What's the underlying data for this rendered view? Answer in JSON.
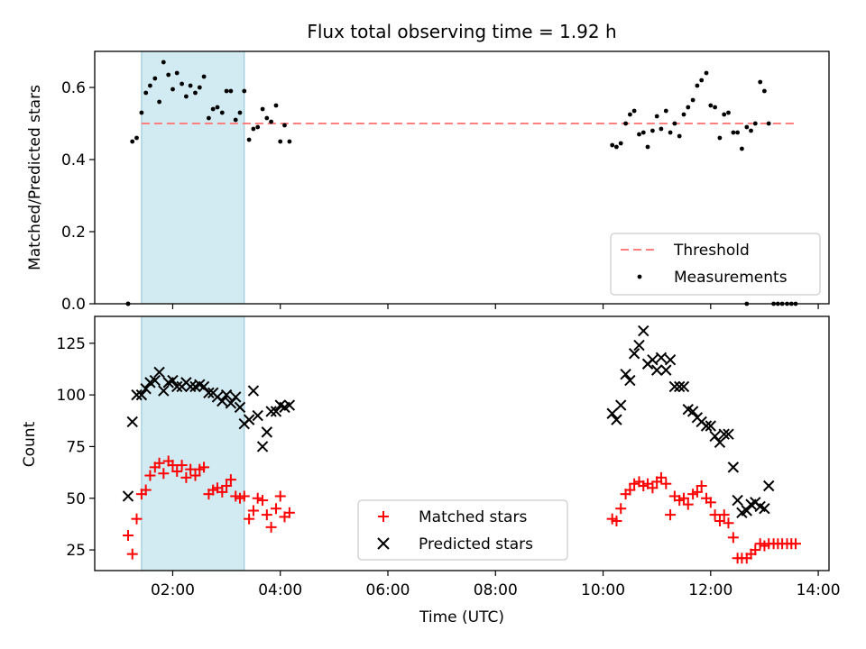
{
  "title": "Flux total observing time = 1.92 h",
  "colors": {
    "threshold": "#ff7f7f",
    "measurements": "#000000",
    "matched": "#ff0000",
    "predicted": "#000000",
    "shade": "#add8e6"
  },
  "chart_data": [
    {
      "type": "scatter",
      "panel": "top",
      "ylabel": "Matched/Predicted stars",
      "xlim": [
        0.55,
        14.2
      ],
      "ylim": [
        0,
        0.7
      ],
      "yticks": [
        0.0,
        0.2,
        0.4,
        0.6
      ],
      "ytick_labels": [
        "0.0",
        "0.2",
        "0.4",
        "0.6"
      ],
      "xticks": [
        2,
        4,
        6,
        8,
        10,
        12,
        14
      ],
      "grid": false,
      "shaded_span": [
        1.42,
        3.33
      ],
      "legend": {
        "position": "lower right",
        "threshold": "Threshold",
        "measurements": "Measurements"
      },
      "threshold": {
        "x": [
          1.42,
          13.6
        ],
        "y": 0.5
      },
      "measurements": {
        "x": [
          1.17,
          1.25,
          1.33,
          1.42,
          1.5,
          1.58,
          1.67,
          1.75,
          1.83,
          1.92,
          2.0,
          2.08,
          2.17,
          2.25,
          2.33,
          2.42,
          2.5,
          2.58,
          2.67,
          2.75,
          2.83,
          2.92,
          3.0,
          3.08,
          3.17,
          3.25,
          3.33,
          3.42,
          3.5,
          3.58,
          3.67,
          3.75,
          3.83,
          3.92,
          4.0,
          4.08,
          4.17,
          10.17,
          10.25,
          10.33,
          10.42,
          10.5,
          10.58,
          10.67,
          10.75,
          10.83,
          10.92,
          11.0,
          11.08,
          11.17,
          11.25,
          11.33,
          11.42,
          11.5,
          11.58,
          11.67,
          11.75,
          11.83,
          11.92,
          12.0,
          12.08,
          12.17,
          12.25,
          12.33,
          12.42,
          12.5,
          12.58,
          12.67,
          12.75,
          12.83,
          12.92,
          13.0,
          13.08,
          12.67,
          13.17,
          13.25,
          13.33,
          13.42,
          13.5,
          13.58,
          1.17
        ],
        "y": [
          0.0,
          0.45,
          0.46,
          0.53,
          0.585,
          0.605,
          0.625,
          0.56,
          0.67,
          0.635,
          0.595,
          0.64,
          0.61,
          0.575,
          0.605,
          0.585,
          0.6,
          0.63,
          0.515,
          0.54,
          0.545,
          0.53,
          0.59,
          0.59,
          0.51,
          0.53,
          0.59,
          0.455,
          0.485,
          0.49,
          0.54,
          0.515,
          0.505,
          0.55,
          0.45,
          0.495,
          0.45,
          0.44,
          0.435,
          0.445,
          0.5,
          0.525,
          0.535,
          0.47,
          0.475,
          0.435,
          0.48,
          0.52,
          0.485,
          0.535,
          0.475,
          0.5,
          0.465,
          0.525,
          0.545,
          0.565,
          0.605,
          0.62,
          0.64,
          0.55,
          0.545,
          0.46,
          0.525,
          0.53,
          0.475,
          0.475,
          0.43,
          0.49,
          0.48,
          0.5,
          0.615,
          0.59,
          0.5,
          0.0,
          0.0,
          0.0,
          0.0,
          0.0,
          0.0,
          0.0,
          0.0
        ]
      }
    },
    {
      "type": "scatter",
      "panel": "bottom",
      "xlabel": "Time (UTC)",
      "ylabel": "Count",
      "xlim": [
        0.55,
        14.2
      ],
      "ylim": [
        15,
        138
      ],
      "yticks": [
        25,
        50,
        75,
        100,
        125
      ],
      "ytick_labels": [
        "25",
        "50",
        "75",
        "100",
        "125"
      ],
      "xticks": [
        2,
        4,
        6,
        8,
        10,
        12,
        14
      ],
      "xtick_labels": [
        "02:00",
        "04:00",
        "06:00",
        "08:00",
        "10:00",
        "12:00",
        "14:00"
      ],
      "grid": false,
      "shaded_span": [
        1.42,
        3.33
      ],
      "legend": {
        "position": "lower center",
        "matched": "Matched stars",
        "predicted": "Predicted stars"
      },
      "series": [
        {
          "name": "Matched stars",
          "marker": "+",
          "x": [
            1.17,
            1.25,
            1.33,
            1.42,
            1.5,
            1.58,
            1.67,
            1.75,
            1.83,
            1.92,
            2.0,
            2.08,
            2.17,
            2.25,
            2.33,
            2.42,
            2.5,
            2.58,
            2.67,
            2.75,
            2.83,
            2.92,
            3.0,
            3.08,
            3.17,
            3.25,
            3.33,
            3.42,
            3.5,
            3.58,
            3.67,
            3.75,
            3.83,
            3.92,
            4.0,
            4.08,
            4.17,
            10.17,
            10.25,
            10.33,
            10.42,
            10.5,
            10.58,
            10.67,
            10.75,
            10.83,
            10.92,
            11.0,
            11.08,
            11.17,
            11.25,
            11.33,
            11.42,
            11.5,
            11.58,
            11.67,
            11.75,
            11.83,
            11.92,
            12.0,
            12.08,
            12.17,
            12.25,
            12.33,
            12.42,
            12.5,
            12.58,
            12.67,
            12.75,
            12.83,
            12.92,
            13.0,
            13.08,
            13.17,
            13.25,
            13.33,
            13.42,
            13.5,
            13.58
          ],
          "y": [
            32,
            23,
            40,
            52,
            54,
            61,
            65,
            67,
            62,
            68,
            66,
            63,
            66,
            60,
            64,
            61,
            64,
            65,
            52,
            54,
            55,
            53,
            56,
            59,
            51,
            50,
            51,
            40,
            44,
            50,
            49,
            42,
            36,
            45,
            51,
            41,
            43,
            40,
            39,
            45,
            52,
            54,
            57,
            58,
            56,
            57,
            55,
            58,
            60,
            57,
            42,
            51,
            49,
            50,
            47,
            52,
            53,
            56,
            50,
            48,
            42,
            39,
            42,
            38,
            31,
            21,
            21,
            21,
            23,
            25,
            28,
            27,
            28,
            28,
            28,
            28,
            28,
            28,
            28
          ]
        },
        {
          "name": "Predicted stars",
          "marker": "x",
          "x": [
            1.17,
            1.25,
            1.33,
            1.42,
            1.5,
            1.58,
            1.67,
            1.75,
            1.83,
            1.92,
            2.0,
            2.08,
            2.17,
            2.25,
            2.33,
            2.42,
            2.5,
            2.58,
            2.67,
            2.75,
            2.83,
            2.92,
            3.0,
            3.08,
            3.17,
            3.25,
            3.33,
            3.42,
            3.5,
            3.58,
            3.67,
            3.75,
            3.83,
            3.92,
            4.0,
            4.08,
            4.17,
            10.17,
            10.25,
            10.33,
            10.42,
            10.5,
            10.58,
            10.67,
            10.75,
            10.83,
            10.92,
            11.0,
            11.08,
            11.17,
            11.25,
            11.33,
            11.42,
            11.5,
            11.58,
            11.67,
            11.75,
            11.83,
            11.92,
            12.0,
            12.08,
            12.17,
            12.25,
            12.33,
            12.42,
            12.5,
            12.58,
            12.67,
            12.75,
            12.83,
            12.92,
            13.0,
            13.08
          ],
          "y": [
            51,
            87,
            100,
            100,
            103,
            106,
            107,
            111,
            102,
            106,
            107,
            104,
            104,
            106,
            104,
            104,
            105,
            104,
            101,
            101,
            99,
            97,
            100,
            96,
            99,
            94,
            86,
            88,
            102,
            90,
            75,
            82,
            92,
            92,
            95,
            94,
            95,
            91,
            88,
            95,
            110,
            107,
            120,
            124,
            131,
            115,
            117,
            112,
            118,
            112,
            117,
            104,
            104,
            104,
            93,
            92,
            89,
            87,
            85,
            85,
            80,
            77,
            81,
            81,
            65,
            49,
            43,
            44,
            47,
            48,
            46,
            45,
            56
          ]
        }
      ]
    }
  ]
}
